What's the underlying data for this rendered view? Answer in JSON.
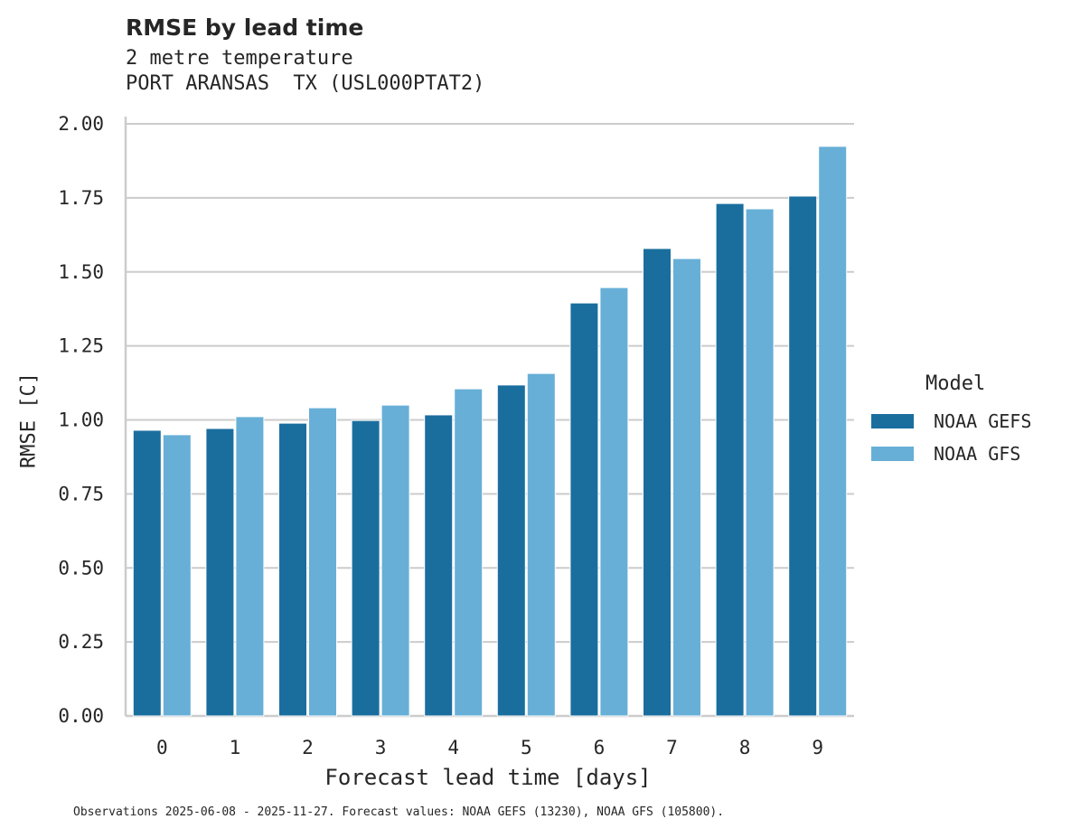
{
  "title": "RMSE by lead time",
  "subtitle_line1": "2 metre temperature",
  "subtitle_line2": "PORT ARANSAS  TX (USL000PTAT2)",
  "footer": "Observations 2025-06-08 - 2025-11-27. Forecast values: NOAA GEFS (13230), NOAA GFS (105800).",
  "colors": {
    "gefs": "#1a6e9e",
    "gfs": "#67afd7",
    "grid": "#cccccc"
  },
  "chart_data": {
    "type": "bar",
    "title": "RMSE by lead time",
    "subtitle": "2 metre temperature / PORT ARANSAS  TX (USL000PTAT2)",
    "xlabel": "Forecast lead time [days]",
    "ylabel": "RMSE [C]",
    "categories": [
      "0",
      "1",
      "2",
      "3",
      "4",
      "5",
      "6",
      "7",
      "8",
      "9"
    ],
    "series": [
      {
        "name": "NOAA GEFS",
        "values": [
          0.965,
          0.971,
          0.989,
          0.998,
          1.017,
          1.118,
          1.395,
          1.579,
          1.731,
          1.756
        ]
      },
      {
        "name": "NOAA GFS",
        "values": [
          0.95,
          1.011,
          1.041,
          1.05,
          1.105,
          1.157,
          1.447,
          1.545,
          1.713,
          1.924
        ]
      }
    ],
    "ylim": [
      0,
      2.0
    ],
    "yticks": [
      "0.00",
      "0.25",
      "0.50",
      "0.75",
      "1.00",
      "1.25",
      "1.50",
      "1.75",
      "2.00"
    ],
    "grid": true,
    "legend_title": "Model",
    "legend_position": "right"
  }
}
